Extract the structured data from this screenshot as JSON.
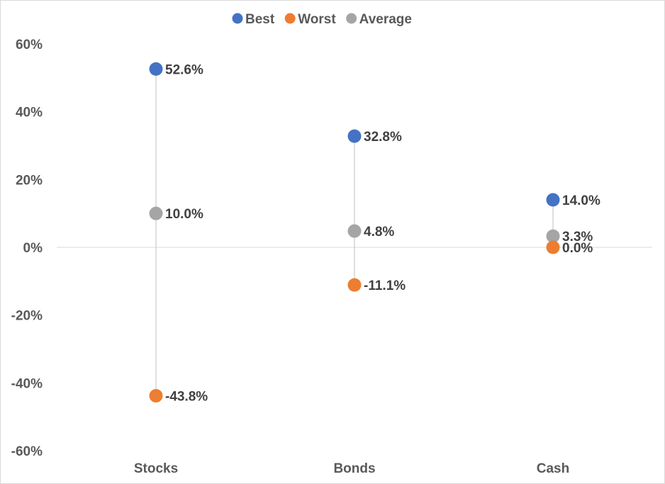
{
  "chart_data": {
    "type": "scatter",
    "title": "",
    "xlabel": "",
    "ylabel": "",
    "categories": [
      "Stocks",
      "Bonds",
      "Cash"
    ],
    "series": [
      {
        "name": "Best",
        "color": "#4472C4",
        "values": [
          52.6,
          32.8,
          14.0
        ],
        "labels": [
          "52.6%",
          "32.8%",
          "14.0%"
        ]
      },
      {
        "name": "Worst",
        "color": "#ED7D31",
        "values": [
          -43.8,
          -11.1,
          0.0
        ],
        "labels": [
          "-43.8%",
          "-11.1%",
          "0.0%"
        ]
      },
      {
        "name": "Average",
        "color": "#A5A5A5",
        "values": [
          10.0,
          4.8,
          3.3
        ],
        "labels": [
          "10.0%",
          "4.8%",
          "3.3%"
        ]
      }
    ],
    "ylim": [
      -60,
      60
    ],
    "yticks": [
      60,
      40,
      20,
      0,
      -20,
      -40,
      -60
    ],
    "ytick_labels": [
      "60%",
      "40%",
      "20%",
      "0%",
      "-20%",
      "-40%",
      "-60%"
    ],
    "legend_position": "top-center",
    "gridlines": false,
    "range_line_color": "#BFBFBF",
    "zero_line_color": "#D9D9D9"
  }
}
